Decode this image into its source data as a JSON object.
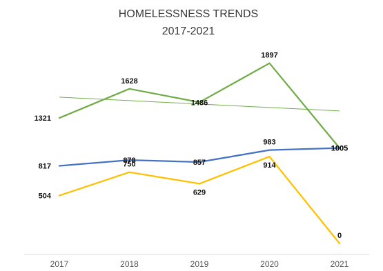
{
  "chart_data": {
    "type": "line",
    "title": "HOMELESSNESS TRENDS",
    "subtitle": "2017-2021",
    "xlabel": "",
    "ylabel": "",
    "x": [
      "2017",
      "2018",
      "2019",
      "2020",
      "2021"
    ],
    "ylim": [
      0,
      2200
    ],
    "grid": false,
    "series": [
      {
        "values": [
          1321,
          1628,
          1486,
          1897,
          1005
        ],
        "color": "#70AD47"
      },
      {
        "values": [
          817,
          878,
          857,
          983,
          1005
        ],
        "color": "#4472C4"
      },
      {
        "values": [
          504,
          750,
          629,
          914,
          0
        ],
        "color": "#FFC000"
      }
    ],
    "trendline": {
      "series_index": 0,
      "type": "linear",
      "color": "#70AD47"
    }
  }
}
